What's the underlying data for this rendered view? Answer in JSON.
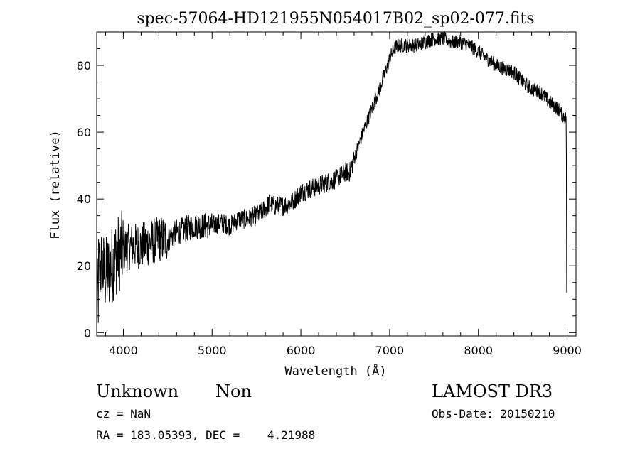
{
  "chart_data": {
    "type": "line",
    "title": "spec-57064-HD121955N054017B02_sp02-077.fits",
    "xlabel": "Wavelength (Å)",
    "ylabel": "Flux (relative)",
    "xlim": [
      3700,
      9100
    ],
    "ylim": [
      -1,
      90
    ],
    "xticks": [
      4000,
      5000,
      6000,
      7000,
      8000,
      9000
    ],
    "yticks": [
      0,
      20,
      40,
      60,
      80
    ],
    "grid": false,
    "series": [
      {
        "x": [
          3700,
          3750,
          3800,
          3850,
          3900,
          3950,
          4000,
          4100,
          4200,
          4300,
          4400,
          4500,
          4600,
          4700,
          4800,
          4900,
          5000,
          5100,
          5200,
          5300,
          5400,
          5500,
          5600,
          5650,
          5700,
          5800,
          5900,
          6000,
          6100,
          6200,
          6300,
          6400,
          6500,
          6550,
          6600,
          6650,
          6700,
          6800,
          6900,
          7000,
          7050,
          7100,
          7200,
          7300,
          7400,
          7500,
          7600,
          7700,
          7800,
          7900,
          8000,
          8100,
          8200,
          8300,
          8400,
          8500,
          8600,
          8700,
          8800,
          8900,
          8950,
          8990
        ],
        "values": [
          18,
          20,
          17,
          19,
          22,
          24,
          25,
          26,
          26,
          27,
          28,
          28,
          30,
          31,
          32,
          32,
          32,
          33,
          32,
          34,
          34,
          35,
          37,
          39,
          38,
          38,
          39,
          42,
          43,
          44,
          45,
          46,
          48,
          48,
          52,
          56,
          60,
          67,
          74,
          82,
          85,
          86,
          86,
          86,
          87,
          88,
          88,
          87,
          87,
          86,
          84,
          82,
          80,
          79,
          78,
          75,
          73,
          72,
          69,
          67,
          65,
          64
        ]
      }
    ]
  },
  "info": {
    "object_class": "Unknown",
    "object_subclass": "Non",
    "cz": "cz = NaN",
    "radec": "RA = 183.05393, DEC =    4.21988",
    "survey": "LAMOST DR3",
    "obs_date": "Obs-Date: 20150210"
  }
}
